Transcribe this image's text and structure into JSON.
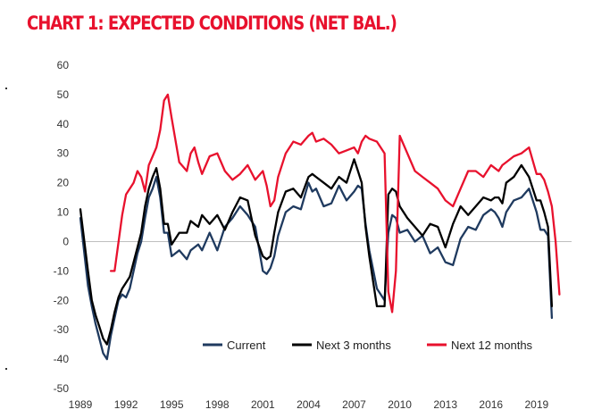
{
  "title": "CHART 1: EXPECTED CONDITIONS (NET BAL.)",
  "chart_data": {
    "type": "line",
    "title": "CHART 1: EXPECTED CONDITIONS (NET BAL.)",
    "xlabel": "",
    "ylabel": "",
    "ylim": [
      -50,
      60
    ],
    "yticks": [
      60,
      50,
      40,
      30,
      20,
      10,
      0,
      -10,
      -20,
      -30,
      -40,
      -50
    ],
    "xlim": [
      1989,
      2021.3
    ],
    "xticks": [
      "1989",
      "1992",
      "1995",
      "1998",
      "2001",
      "2004",
      "2007",
      "2010",
      "2013",
      "2016",
      "2019"
    ],
    "grid": false,
    "legend": "bottom-right",
    "series": [
      {
        "name": "Current",
        "color": "#1f3a5f",
        "x": [
          1989.0,
          1989.5,
          1989.75,
          1990.0,
          1990.25,
          1990.5,
          1990.75,
          1991.0,
          1991.25,
          1991.5,
          1991.75,
          1992.0,
          1992.25,
          1992.5,
          1992.75,
          1993.0,
          1993.25,
          1993.5,
          1993.75,
          1994.0,
          1994.25,
          1994.5,
          1994.75,
          1995.0,
          1995.5,
          1996.0,
          1996.25,
          1996.5,
          1996.75,
          1997.0,
          1997.5,
          1998.0,
          1998.5,
          1999.0,
          1999.5,
          2000.0,
          2000.5,
          2001.0,
          2001.25,
          2001.5,
          2001.75,
          2002.0,
          2002.5,
          2003.0,
          2003.5,
          2004.0,
          2004.25,
          2004.5,
          2005.0,
          2005.5,
          2006.0,
          2006.5,
          2007.0,
          2007.25,
          2007.5,
          2007.75,
          2008.0,
          2008.5,
          2009.0,
          2009.25,
          2009.5,
          2009.75,
          2010.0,
          2010.5,
          2011.0,
          2011.5,
          2012.0,
          2012.5,
          2013.0,
          2013.5,
          2014.0,
          2014.5,
          2015.0,
          2015.5,
          2016.0,
          2016.25,
          2016.5,
          2016.75,
          2017.0,
          2017.5,
          2018.0,
          2018.5,
          2019.0,
          2019.25,
          2019.5,
          2019.75,
          2020.0
        ],
        "values": [
          8,
          -15,
          -22,
          -28,
          -33,
          -38,
          -40,
          -32,
          -26,
          -20,
          -18,
          -19,
          -16,
          -10,
          -4,
          0,
          8,
          15,
          18,
          22,
          15,
          3,
          3,
          -5,
          -3,
          -6,
          -3,
          -2,
          -1,
          -3,
          3,
          -3,
          5,
          8,
          12,
          9,
          5,
          -10,
          -11,
          -9,
          -5,
          2,
          10,
          12,
          11,
          20,
          17,
          18,
          12,
          13,
          19,
          14,
          17,
          19,
          18,
          6,
          -3,
          -16,
          -20,
          3,
          9,
          8,
          3,
          4,
          0,
          2,
          -4,
          -2,
          -7,
          -8,
          1,
          5,
          4,
          9,
          11,
          10,
          8,
          5,
          10,
          14,
          15,
          18,
          10,
          4,
          4,
          2,
          -26
        ]
      },
      {
        "name": "Next 3 months",
        "color": "#000000",
        "x": [
          1989.0,
          1989.5,
          1989.75,
          1990.0,
          1990.25,
          1990.5,
          1990.75,
          1991.0,
          1991.25,
          1991.5,
          1991.75,
          1992.0,
          1992.25,
          1992.5,
          1992.75,
          1993.0,
          1993.25,
          1993.5,
          1993.75,
          1994.0,
          1994.25,
          1994.5,
          1994.75,
          1995.0,
          1995.5,
          1996.0,
          1996.25,
          1996.5,
          1996.75,
          1997.0,
          1997.5,
          1998.0,
          1998.5,
          1999.0,
          1999.5,
          2000.0,
          2000.5,
          2001.0,
          2001.25,
          2001.5,
          2001.75,
          2002.0,
          2002.5,
          2003.0,
          2003.5,
          2004.0,
          2004.25,
          2004.5,
          2005.0,
          2005.5,
          2006.0,
          2006.5,
          2007.0,
          2007.25,
          2007.5,
          2007.75,
          2008.0,
          2008.5,
          2009.0,
          2009.25,
          2009.5,
          2009.75,
          2010.0,
          2010.5,
          2011.0,
          2011.5,
          2012.0,
          2012.5,
          2013.0,
          2013.5,
          2014.0,
          2014.5,
          2015.0,
          2015.5,
          2016.0,
          2016.25,
          2016.5,
          2016.75,
          2017.0,
          2017.5,
          2018.0,
          2018.5,
          2019.0,
          2019.25,
          2019.5,
          2019.75,
          2020.0
        ],
        "values": [
          11,
          -10,
          -20,
          -25,
          -29,
          -33,
          -35,
          -30,
          -24,
          -19,
          -16,
          -14,
          -12,
          -7,
          -2,
          3,
          12,
          18,
          22,
          25,
          18,
          6,
          6,
          -1,
          3,
          3,
          7,
          6,
          5,
          9,
          6,
          9,
          4,
          10,
          15,
          14,
          2,
          -5,
          -6,
          -5,
          3,
          10,
          17,
          18,
          15,
          22,
          23,
          22,
          20,
          18,
          22,
          20,
          28,
          24,
          20,
          5,
          -5,
          -22,
          -22,
          16,
          18,
          17,
          12,
          8,
          5,
          2,
          6,
          5,
          -2,
          6,
          12,
          9,
          12,
          15,
          14,
          15,
          15,
          13,
          20,
          22,
          26,
          22,
          14,
          14,
          10,
          5,
          -22
        ]
      },
      {
        "name": "Next 12 months",
        "color": "#e8112d",
        "x": [
          1991.0,
          1991.25,
          1991.75,
          1992.0,
          1992.5,
          1992.75,
          1993.0,
          1993.25,
          1993.5,
          1993.75,
          1994.0,
          1994.25,
          1994.5,
          1994.75,
          1995.0,
          1995.5,
          1996.0,
          1996.25,
          1996.5,
          1996.75,
          1997.0,
          1997.5,
          1998.0,
          1998.5,
          1999.0,
          1999.5,
          2000.0,
          2000.5,
          2001.0,
          2001.25,
          2001.5,
          2001.75,
          2002.0,
          2002.5,
          2003.0,
          2003.5,
          2004.0,
          2004.25,
          2004.5,
          2005.0,
          2005.5,
          2006.0,
          2006.5,
          2007.0,
          2007.25,
          2007.5,
          2007.75,
          2008.0,
          2008.5,
          2009.0,
          2009.25,
          2009.5,
          2009.75,
          2010.0,
          2010.5,
          2011.0,
          2011.5,
          2012.0,
          2012.5,
          2013.0,
          2013.5,
          2014.0,
          2014.5,
          2015.0,
          2015.5,
          2016.0,
          2016.25,
          2016.5,
          2016.75,
          2017.0,
          2017.5,
          2018.0,
          2018.5,
          2019.0,
          2019.25,
          2019.5,
          2019.75,
          2020.0,
          2020.25,
          2020.5
        ],
        "values": [
          -10,
          -10,
          9,
          16,
          20,
          24,
          22,
          17,
          26,
          29,
          32,
          38,
          48,
          50,
          42,
          27,
          24,
          30,
          32,
          27,
          23,
          29,
          30,
          24,
          21,
          23,
          26,
          21,
          24,
          19,
          12,
          14,
          22,
          30,
          34,
          33,
          36,
          37,
          34,
          35,
          33,
          30,
          31,
          32,
          30,
          34,
          36,
          35,
          34,
          30,
          -17,
          -24,
          -10,
          36,
          30,
          24,
          22,
          20,
          18,
          14,
          12,
          18,
          24,
          24,
          22,
          26,
          25,
          24,
          26,
          27,
          29,
          30,
          32,
          23,
          23,
          21,
          17,
          12,
          0,
          -18
        ]
      }
    ]
  }
}
